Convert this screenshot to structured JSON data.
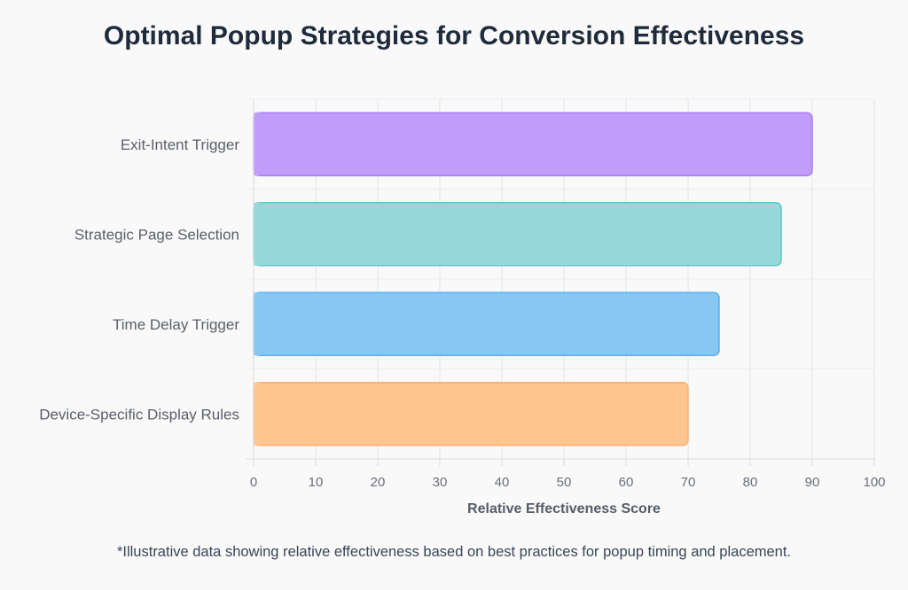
{
  "chart_data": {
    "type": "bar",
    "orientation": "horizontal",
    "title": "Optimal Popup Strategies for Conversion Effectiveness",
    "xlabel": "Relative Effectiveness Score",
    "ylabel": "",
    "xlim": [
      0,
      100
    ],
    "ticks": [
      0,
      10,
      20,
      30,
      40,
      50,
      60,
      70,
      80,
      90,
      100
    ],
    "grid": true,
    "categories": [
      "Exit-Intent Trigger",
      "Strategic Page Selection",
      "Time Delay Trigger",
      "Device-Specific Display Rules"
    ],
    "values": [
      90,
      85,
      75,
      70
    ],
    "colors": [
      {
        "fill": "#c09dfb",
        "stroke": "#a57ef7"
      },
      {
        "fill": "#95d9da",
        "stroke": "#63c7c9"
      },
      {
        "fill": "#88c6f3",
        "stroke": "#5ab0ec"
      },
      {
        "fill": "#fec591",
        "stroke": "#fcb06d"
      }
    ],
    "footnote": "*Illustrative data showing relative effectiveness based on best practices for popup timing and placement."
  }
}
